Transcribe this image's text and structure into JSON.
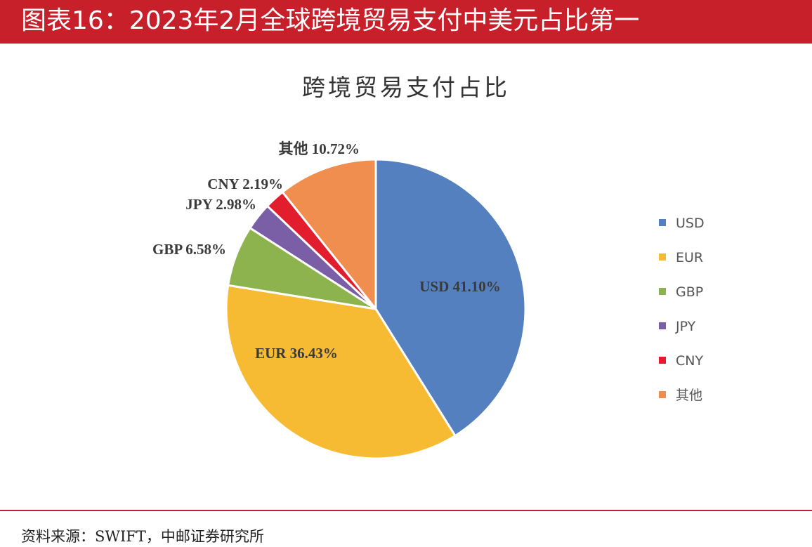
{
  "header": {
    "title": "图表16：2023年2月全球跨境贸易支付中美元占比第一"
  },
  "chart_data": {
    "type": "pie",
    "title": "跨境贸易支付占比",
    "categories": [
      "USD",
      "EUR",
      "GBP",
      "JPY",
      "CNY",
      "其他"
    ],
    "values": [
      41.1,
      36.43,
      6.58,
      2.98,
      2.19,
      10.72
    ],
    "data_labels": [
      "USD 41.10%",
      "EUR 36.43%",
      "GBP 6.58%",
      "JPY 2.98%",
      "CNY 2.19%",
      "其他 10.72%"
    ],
    "colors": [
      "#5580bf",
      "#f7bb33",
      "#8db34e",
      "#7a5ea6",
      "#e11d2e",
      "#ef8e4f"
    ],
    "legend": "right"
  },
  "footer": {
    "source": "资料来源：SWIFT，中邮证券研究所"
  }
}
